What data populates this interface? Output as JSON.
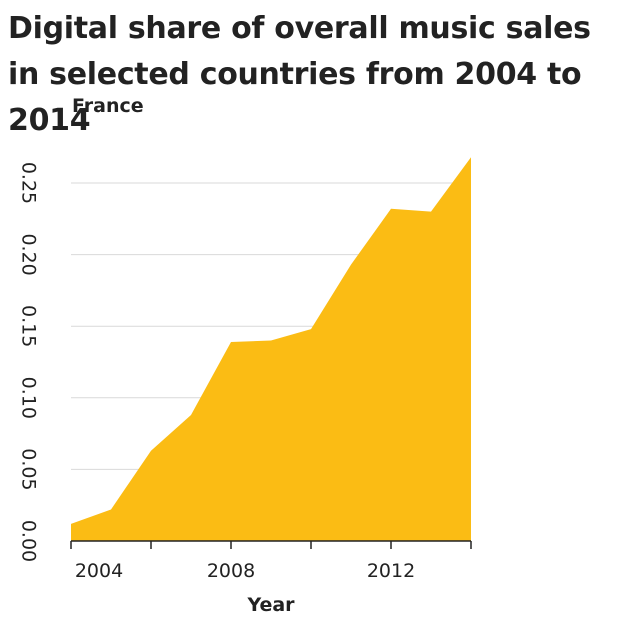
{
  "chart_data": {
    "type": "area",
    "title": "Digital share of overall music sales in selected countries from 2004 to 2014",
    "ylabel": "France",
    "xlabel": "Year",
    "x": [
      2004,
      2005,
      2006,
      2007,
      2008,
      2009,
      2010,
      2011,
      2012,
      2013,
      2014
    ],
    "series": [
      {
        "values": [
          0.012,
          0.022,
          0.063,
          0.088,
          0.139,
          0.14,
          0.148,
          0.193,
          0.232,
          0.23,
          0.268
        ]
      }
    ],
    "xlim": [
      2004,
      2014
    ],
    "ylim": [
      0,
      0.25
    ],
    "xticks": [
      2004,
      2006,
      2008,
      2010,
      2012,
      2014
    ],
    "xtick_labels": [
      "2004",
      "",
      "2008",
      "",
      "2012",
      ""
    ],
    "yticks": [
      "0.00",
      "0.05",
      "0.10",
      "0.15",
      "0.20",
      "0.25"
    ],
    "grid": "horizontal",
    "fill_color": "#fbbc14",
    "grid_color": "#d9d9d9",
    "axis_color": "#222222"
  }
}
